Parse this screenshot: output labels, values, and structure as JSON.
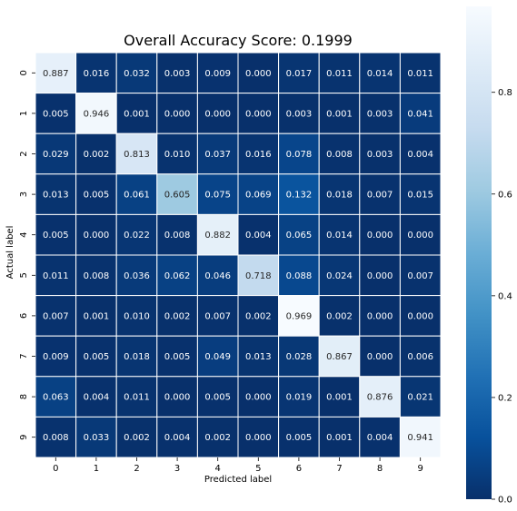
{
  "chart_data": {
    "type": "heatmap",
    "title": "Overall Accuracy Score: 0.1999",
    "xlabel": "Predicted label",
    "ylabel": "Actual label",
    "x_categories": [
      "0",
      "1",
      "2",
      "3",
      "4",
      "5",
      "6",
      "7",
      "8",
      "9"
    ],
    "y_categories": [
      "0",
      "1",
      "2",
      "3",
      "4",
      "5",
      "6",
      "7",
      "8",
      "9"
    ],
    "values": [
      [
        0.887,
        0.016,
        0.032,
        0.003,
        0.009,
        0.0,
        0.017,
        0.011,
        0.014,
        0.011
      ],
      [
        0.005,
        0.946,
        0.001,
        0.0,
        0.0,
        0.0,
        0.003,
        0.001,
        0.003,
        0.041
      ],
      [
        0.029,
        0.002,
        0.813,
        0.01,
        0.037,
        0.016,
        0.078,
        0.008,
        0.003,
        0.004
      ],
      [
        0.013,
        0.005,
        0.061,
        0.605,
        0.075,
        0.069,
        0.132,
        0.018,
        0.007,
        0.015
      ],
      [
        0.005,
        0.0,
        0.022,
        0.008,
        0.882,
        0.004,
        0.065,
        0.014,
        0.0,
        0.0
      ],
      [
        0.011,
        0.008,
        0.036,
        0.062,
        0.046,
        0.718,
        0.088,
        0.024,
        0.0,
        0.007
      ],
      [
        0.007,
        0.001,
        0.01,
        0.002,
        0.007,
        0.002,
        0.969,
        0.002,
        0.0,
        0.0
      ],
      [
        0.009,
        0.005,
        0.018,
        0.005,
        0.049,
        0.013,
        0.028,
        0.867,
        0.0,
        0.006
      ],
      [
        0.063,
        0.004,
        0.011,
        0.0,
        0.005,
        0.0,
        0.019,
        0.001,
        0.876,
        0.021
      ],
      [
        0.008,
        0.033,
        0.002,
        0.004,
        0.002,
        0.0,
        0.005,
        0.001,
        0.004,
        0.941
      ]
    ],
    "colormap": "Blues_r",
    "vmin": 0.0,
    "vmax": 0.969,
    "colorbar_ticks": [
      0.0,
      0.2,
      0.4,
      0.6,
      0.8
    ],
    "colorbar_tick_labels": [
      "0.0",
      "0.2",
      "0.4",
      "0.6",
      "0.8"
    ],
    "colors": {
      "low": "#08306b",
      "high": "#f7fbff",
      "grid": "#ffffff"
    }
  }
}
